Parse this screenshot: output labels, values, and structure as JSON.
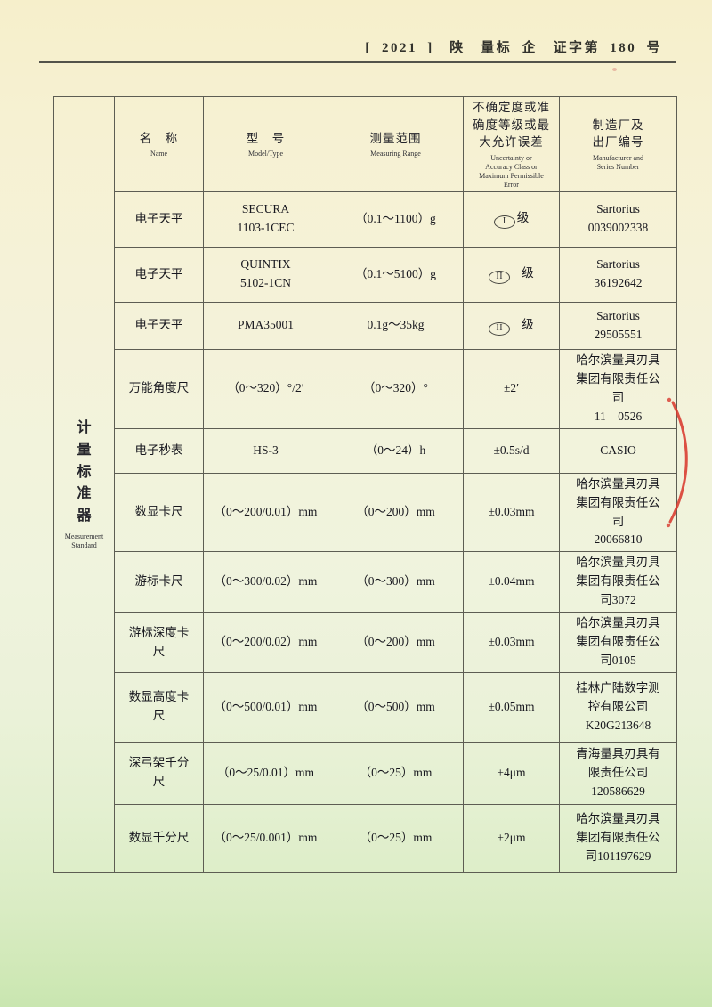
{
  "page": {
    "doc_number": "[ 2021 ]　陕　量标 企　证字第 180 号"
  },
  "seal": {
    "color": "#d8392e"
  },
  "table": {
    "group": {
      "zh": "计量标准器",
      "en": "Measurement Standard"
    },
    "columns": [
      {
        "zh": "名　称",
        "en": "Name"
      },
      {
        "zh": "型　号",
        "en": "Model/Type"
      },
      {
        "zh": "测量范围",
        "en": "Measuring Range"
      },
      {
        "zh": "不确定度或准\n确度等级或最\n大允许误差",
        "en": "Uncertainty or\nAccuracy Class or\nMaximum Permissible\nError"
      },
      {
        "zh": "制造厂及\n出厂编号",
        "en": "Manufacturer and\nSeries Number"
      }
    ],
    "rows": [
      {
        "name": "电子天平",
        "model": "SECURA\n1103-1CEC",
        "range": "（0.1～1100）g",
        "accuracy": {
          "numeral": "I",
          "label": "级",
          "wide_gap": false
        },
        "manufacturer": "Sartorius\n0039002338"
      },
      {
        "name": "电子天平",
        "model": "QUINTIX\n5102-1CN",
        "range": "（0.1～5100）g",
        "accuracy": {
          "numeral": "II",
          "label": "级",
          "wide_gap": true
        },
        "manufacturer": "Sartorius\n36192642"
      },
      {
        "name": "电子天平",
        "model": "PMA35001",
        "range": "0.1g～35kg",
        "accuracy": {
          "numeral": "II",
          "label": "级",
          "wide_gap": true
        },
        "manufacturer": "Sartorius\n29505551"
      },
      {
        "name": "万能角度尺",
        "model": "（0～320）°/2′",
        "range": "（0～320）°",
        "accuracy": {
          "text": "±2′"
        },
        "manufacturer": "哈尔滨量具刃具\n集团有限责任公\n司\n11　0526"
      },
      {
        "name": "电子秒表",
        "model": "HS-3",
        "range": "（0～24）h",
        "accuracy": {
          "text": "±0.5s/d"
        },
        "manufacturer": "CASIO"
      },
      {
        "name": "数显卡尺",
        "model": "（0～200/0.01）mm",
        "range": "（0～200）mm",
        "accuracy": {
          "text": "±0.03mm"
        },
        "manufacturer": "哈尔滨量具刃具\n集团有限责任公\n司\n20066810"
      },
      {
        "name": "游标卡尺",
        "model": "（0～300/0.02）mm",
        "range": "（0～300）mm",
        "accuracy": {
          "text": "±0.04mm"
        },
        "manufacturer": "哈尔滨量具刃具\n集团有限责任公\n司3072"
      },
      {
        "name": "游标深度卡\n尺",
        "model": "（0～200/0.02）mm",
        "range": "（0～200）mm",
        "accuracy": {
          "text": "±0.03mm"
        },
        "manufacturer": "哈尔滨量具刃具\n集团有限责任公\n司0105"
      },
      {
        "name": "数显高度卡\n尺",
        "model": "（0～500/0.01）mm",
        "range": "（0～500）mm",
        "accuracy": {
          "text": "±0.05mm"
        },
        "manufacturer": "桂林广陆数字测\n控有限公司\nK20G213648"
      },
      {
        "name": "深弓架千分\n尺",
        "model": "（0～25/0.01）mm",
        "range": "（0～25）mm",
        "accuracy": {
          "text": "±4μm"
        },
        "manufacturer": "青海量具刃具有\n限责任公司\n120586629"
      },
      {
        "name": "数显千分尺",
        "model": "（0～25/0.001）mm",
        "range": "（0～25）mm",
        "accuracy": {
          "text": "±2μm"
        },
        "manufacturer": "哈尔滨量具刃具\n集团有限责任公\n司101197629"
      }
    ]
  }
}
